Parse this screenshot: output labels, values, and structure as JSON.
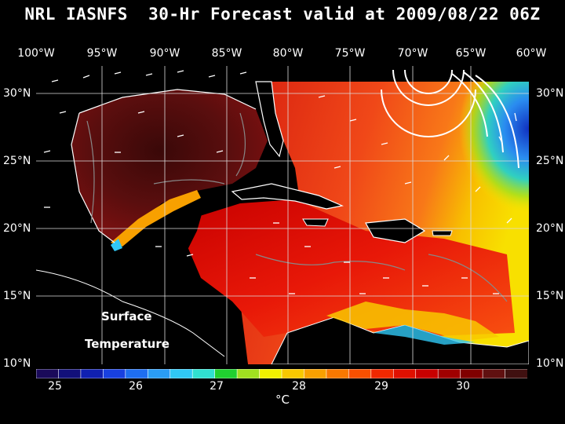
{
  "title": "NRL IASNFS  30-Hr Forecast valid at 2009/08/22 06Z",
  "longitude_labels": [
    "100°W",
    "95°W",
    "90°W",
    "85°W",
    "80°W",
    "75°W",
    "70°W",
    "65°W",
    "60°W"
  ],
  "latitude_labels": [
    "30°N",
    "25°N",
    "20°N",
    "15°N",
    "10°N"
  ],
  "overlay_label_line1": "Surface",
  "overlay_label_line2": "Temperature",
  "colorbar": {
    "tick_labels": [
      "25",
      "26",
      "27",
      "28",
      "29",
      "30"
    ],
    "unit": "°C",
    "colors": [
      "#1a0a5a",
      "#12107a",
      "#1020b0",
      "#1840e0",
      "#1e6ef0",
      "#2a9cf5",
      "#30c8f5",
      "#30e0d0",
      "#20d030",
      "#a0e020",
      "#f0f000",
      "#f8c800",
      "#f8a000",
      "#f87800",
      "#f85000",
      "#f02800",
      "#e01000",
      "#c80000",
      "#a00000",
      "#800000",
      "#601010",
      "#401010"
    ]
  },
  "legend": {
    "land_color": "#000000",
    "coastline_color": "#ffffff",
    "isobath_color": "#888888",
    "vector_color": "#ffffff"
  }
}
